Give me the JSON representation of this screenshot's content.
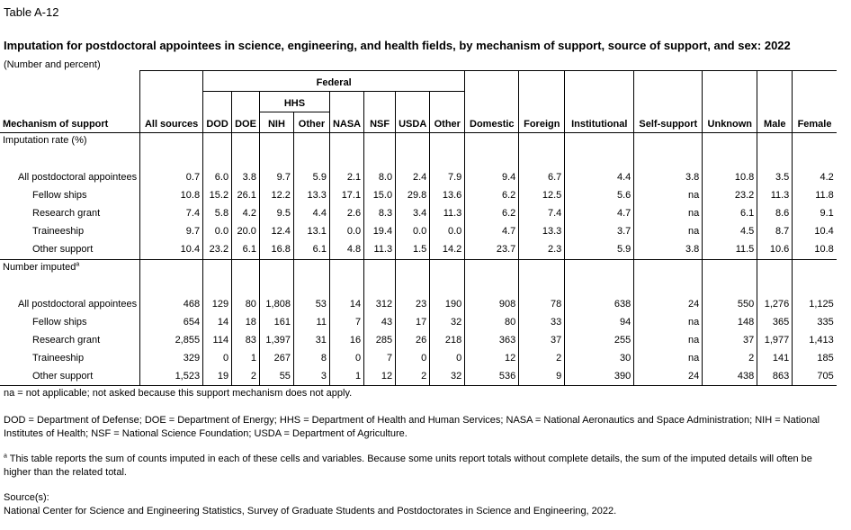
{
  "header": {
    "label": "Table A-12",
    "title": "Imputation for postdoctoral appointees in science, engineering, and health fields, by mechanism of support, source of support, and sex: 2022",
    "units": "(Number and percent)"
  },
  "columns": {
    "mechanism": "Mechanism of support",
    "all_sources": "All sources",
    "federal": "Federal",
    "hhs": "HHS",
    "dod": "DOD",
    "doe": "DOE",
    "nih": "NIH",
    "hhs_other": "Other",
    "nasa": "NASA",
    "nsf": "NSF",
    "usda": "USDA",
    "fed_other": "Other",
    "domestic": "Domestic",
    "foreign": "Foreign",
    "institutional": "Institutional",
    "self_support": "Self-support",
    "unknown": "Unknown",
    "male": "Male",
    "female": "Female"
  },
  "sections": [
    {
      "label": "Imputation rate (%)",
      "footnote": "",
      "rows": [
        {
          "label": "All postdoctoral appointees",
          "values": [
            "0.7",
            "6.0",
            "3.8",
            "9.7",
            "5.9",
            "2.1",
            "8.0",
            "2.4",
            "7.9",
            "9.4",
            "6.7",
            "4.4",
            "3.8",
            "10.8",
            "3.5",
            "4.2"
          ]
        },
        {
          "label": "Fellow ships",
          "values": [
            "10.8",
            "15.2",
            "26.1",
            "12.2",
            "13.3",
            "17.1",
            "15.0",
            "29.8",
            "13.6",
            "6.2",
            "12.5",
            "5.6",
            "na",
            "23.2",
            "11.3",
            "11.8"
          ]
        },
        {
          "label": "Research grant",
          "values": [
            "7.4",
            "5.8",
            "4.2",
            "9.5",
            "4.4",
            "2.6",
            "8.3",
            "3.4",
            "11.3",
            "6.2",
            "7.4",
            "4.7",
            "na",
            "6.1",
            "8.6",
            "9.1"
          ]
        },
        {
          "label": "Traineeship",
          "values": [
            "9.7",
            "0.0",
            "20.0",
            "12.4",
            "13.1",
            "0.0",
            "19.4",
            "0.0",
            "0.0",
            "4.7",
            "13.3",
            "3.7",
            "na",
            "4.5",
            "8.7",
            "10.4"
          ]
        },
        {
          "label": "Other support",
          "values": [
            "10.4",
            "23.2",
            "6.1",
            "16.8",
            "6.1",
            "4.8",
            "11.3",
            "1.5",
            "14.2",
            "23.7",
            "2.3",
            "5.9",
            "3.8",
            "11.5",
            "10.6",
            "10.8"
          ]
        }
      ]
    },
    {
      "label": "Number imputed",
      "footnote": "a",
      "rows": [
        {
          "label": "All postdoctoral appointees",
          "values": [
            "468",
            "129",
            "80",
            "1,808",
            "53",
            "14",
            "312",
            "23",
            "190",
            "908",
            "78",
            "638",
            "24",
            "550",
            "1,276",
            "1,125"
          ]
        },
        {
          "label": "Fellow ships",
          "values": [
            "654",
            "14",
            "18",
            "161",
            "11",
            "7",
            "43",
            "17",
            "32",
            "80",
            "33",
            "94",
            "na",
            "148",
            "365",
            "335"
          ]
        },
        {
          "label": "Research grant",
          "values": [
            "2,855",
            "114",
            "83",
            "1,397",
            "31",
            "16",
            "285",
            "26",
            "218",
            "363",
            "37",
            "255",
            "na",
            "37",
            "1,977",
            "1,413"
          ]
        },
        {
          "label": "Traineeship",
          "values": [
            "329",
            "0",
            "1",
            "267",
            "8",
            "0",
            "7",
            "0",
            "0",
            "12",
            "2",
            "30",
            "na",
            "2",
            "141",
            "185"
          ]
        },
        {
          "label": "Other support",
          "values": [
            "1,523",
            "19",
            "2",
            "55",
            "3",
            "1",
            "12",
            "2",
            "32",
            "536",
            "9",
            "390",
            "24",
            "438",
            "863",
            "705"
          ]
        }
      ]
    }
  ],
  "notes": {
    "na": "na = not applicable; not asked because this support mechanism does not apply.",
    "abbrev": "DOD = Department of Defense; DOE = Department of Energy; HHS = Department of Health and Human Services; NASA = National Aeronautics and Space Administration; NIH = National Institutes of Health; NSF = National Science Foundation; USDA = Department of Agriculture.",
    "footnote_marker": "a",
    "footnote": "This table reports the sum of counts imputed in each of these cells and variables. Because some units report totals without complete details, the sum of the imputed details will often be higher than the related total.",
    "source_label": "Source(s):",
    "source": "National Center for Science and Engineering Statistics, Survey of Graduate Students and Postdoctorates in Science and Engineering, 2022."
  }
}
